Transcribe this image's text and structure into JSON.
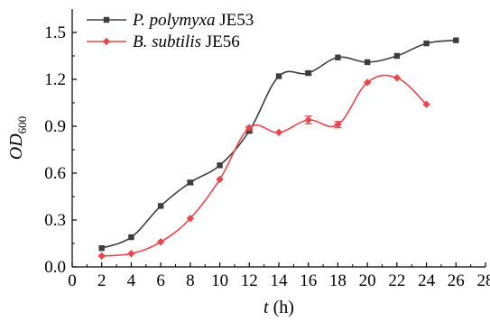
{
  "chart_data": {
    "type": "line",
    "title": "",
    "xlabel_var": "t",
    "xlabel_unit": " (h)",
    "ylabel_main": "OD",
    "ylabel_sub": "600",
    "xlim": [
      0,
      28
    ],
    "ylim": [
      0,
      1.65
    ],
    "xticks": [
      0,
      2,
      4,
      6,
      8,
      10,
      12,
      14,
      16,
      18,
      20,
      22,
      24,
      26,
      28
    ],
    "yticks": [
      0.0,
      0.3,
      0.6,
      0.9,
      1.2,
      1.5
    ],
    "ytick_labels": [
      "0.0",
      "0.3",
      "0.6",
      "0.9",
      "1.2",
      "1.5"
    ],
    "grid": false,
    "legend_position": "top-left",
    "series": [
      {
        "name_italic": "P. polymyxa",
        "name_rest": " JE53",
        "color": "#3d3d3d",
        "marker": "square",
        "x": [
          2,
          4,
          6,
          8,
          10,
          12,
          14,
          16,
          18,
          20,
          22,
          24,
          26
        ],
        "y": [
          0.12,
          0.19,
          0.39,
          0.54,
          0.65,
          0.87,
          1.22,
          1.24,
          1.34,
          1.31,
          1.35,
          1.43,
          1.45
        ],
        "err": [
          0,
          0,
          0,
          0.01,
          0,
          0.01,
          0,
          0.01,
          0,
          0,
          0,
          0,
          0
        ]
      },
      {
        "name_italic": "B. subtilis",
        "name_rest": " JE56",
        "color": "#e8474f",
        "marker": "diamond",
        "x": [
          2,
          4,
          6,
          8,
          10,
          12,
          14,
          16,
          18,
          20,
          22,
          24
        ],
        "y": [
          0.07,
          0.085,
          0.16,
          0.31,
          0.56,
          0.89,
          0.86,
          0.94,
          0.91,
          1.18,
          1.21,
          1.04
        ],
        "err": [
          0,
          0,
          0,
          0,
          0,
          0.01,
          0,
          0.025,
          0.02,
          0,
          0,
          0
        ]
      }
    ]
  }
}
